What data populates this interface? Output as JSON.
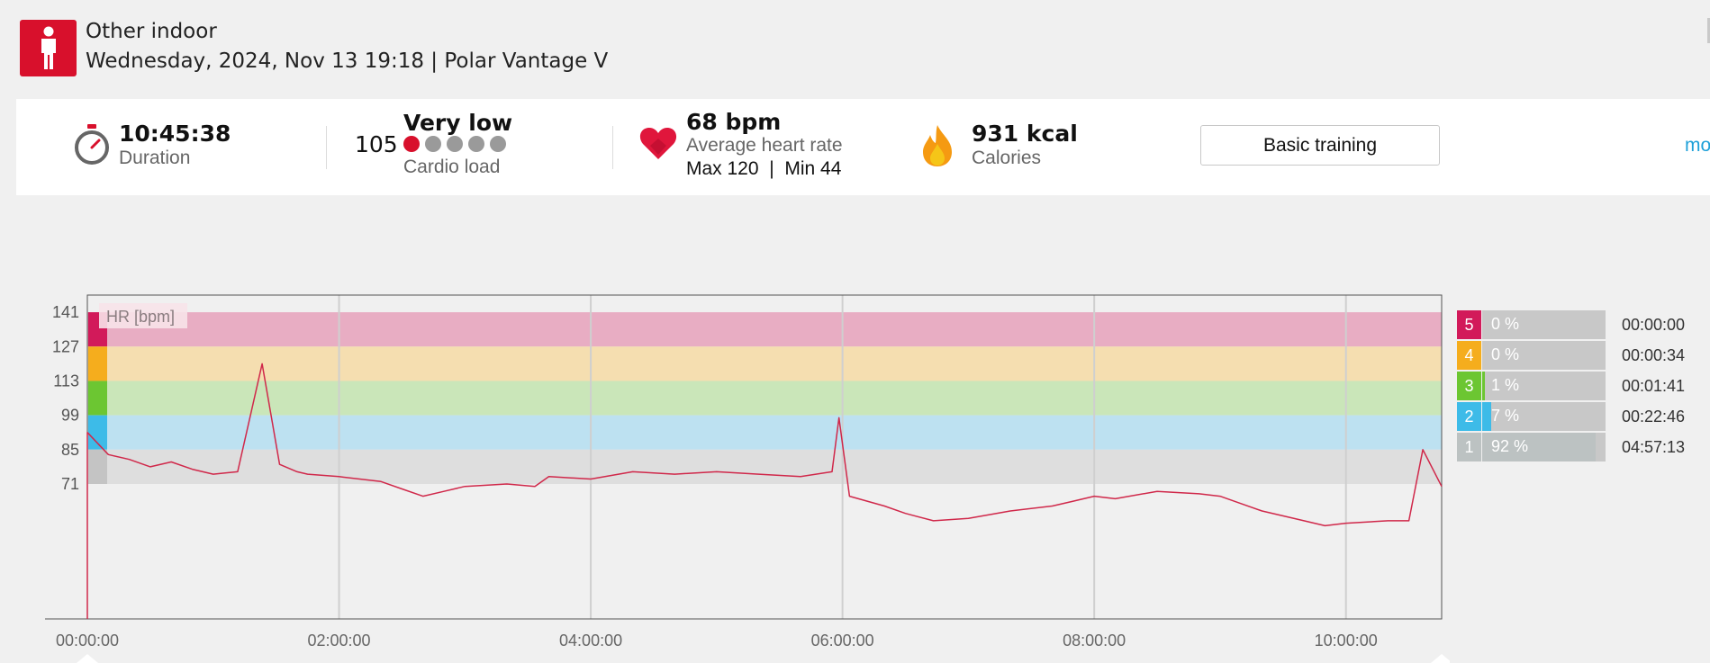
{
  "header": {
    "sport": "Other indoor",
    "subtitle": "Wednesday, 2024, Nov 13 19:18 | Polar Vantage V",
    "sport_icon": "person-icon",
    "accent": "#d8102c"
  },
  "summary": {
    "duration": {
      "value": "10:45:38",
      "label": "Duration",
      "icon": "stopwatch-icon"
    },
    "cardio": {
      "value": "105",
      "level": "Very low",
      "label": "Cardio load",
      "dots_filled": 1,
      "dots_total": 5
    },
    "heart_rate": {
      "value": "68 bpm",
      "label": "Average heart rate",
      "max_min": "Max 120  |  Min 44",
      "icon": "heart-icon"
    },
    "calories": {
      "value": "931 kcal",
      "label": "Calories",
      "icon": "flame-icon"
    },
    "training_button": "Basic training",
    "more_link": "mo"
  },
  "chart_data": {
    "type": "line",
    "title": "",
    "ylabel": "HR [bpm]",
    "xlabel": "",
    "y_ticks": [
      "141",
      "127",
      "113",
      "99",
      "85",
      "71"
    ],
    "x_ticks": [
      "00:00:00",
      "02:00:00",
      "04:00:00",
      "06:00:00",
      "08:00:00",
      "10:00:00"
    ],
    "x_unit": "seconds",
    "x_range": [
      0,
      38738
    ],
    "ylim": [
      16,
      148
    ],
    "zones": [
      {
        "zone": "5",
        "from": 127,
        "to": 141,
        "color": "#e8adc3",
        "marker": "#d21a5a"
      },
      {
        "zone": "4",
        "from": 113,
        "to": 127,
        "color": "#f5deb0",
        "marker": "#f5ad1d"
      },
      {
        "zone": "3",
        "from": 99,
        "to": 113,
        "color": "#cae6b9",
        "marker": "#6cc632"
      },
      {
        "zone": "2",
        "from": 85,
        "to": 99,
        "color": "#bde1f1",
        "marker": "#3dbbe8"
      },
      {
        "zone": "1",
        "from": 71,
        "to": 85,
        "color": "#dedede",
        "marker": "#c4c4c4"
      }
    ],
    "series": [
      {
        "color": "#d0284a",
        "x": [
          0,
          600,
          1200,
          1800,
          2400,
          3000,
          3600,
          4300,
          5000,
          5500,
          6000,
          6300,
          7200,
          8400,
          9000,
          9600,
          10200,
          10800,
          12000,
          12800,
          13200,
          14400,
          15600,
          16800,
          18000,
          19200,
          20400,
          21300,
          21500,
          21800,
          22800,
          23400,
          24200,
          25200,
          26400,
          27600,
          28200,
          28800,
          29400,
          30600,
          31800,
          32400,
          33000,
          33600,
          34800,
          35400,
          36000,
          37200,
          37800,
          38200,
          38738
        ],
        "y": [
          92,
          83,
          81,
          78,
          80,
          77,
          75,
          76,
          120,
          79,
          76,
          75,
          74,
          72,
          69,
          66,
          68,
          70,
          71,
          70,
          74,
          73,
          76,
          75,
          76,
          75,
          74,
          76,
          98,
          66,
          62,
          59,
          56,
          57,
          60,
          62,
          64,
          66,
          65,
          68,
          67,
          66,
          63,
          60,
          56,
          54,
          55,
          56,
          56,
          85,
          70
        ]
      }
    ]
  },
  "zone_stats": [
    {
      "zone": "5",
      "pct": "0 %",
      "fraction": 0.0,
      "time": "00:00:00",
      "color": "#d21a5a"
    },
    {
      "zone": "4",
      "pct": "0 %",
      "fraction": 0.0,
      "time": "00:00:34",
      "color": "#f5ad1d"
    },
    {
      "zone": "3",
      "pct": "1 %",
      "fraction": 0.01,
      "time": "00:01:41",
      "color": "#6cc632"
    },
    {
      "zone": "2",
      "pct": "7 %",
      "fraction": 0.07,
      "time": "00:22:46",
      "color": "#3dbbe8"
    },
    {
      "zone": "1",
      "pct": "92 %",
      "fraction": 0.92,
      "time": "04:57:13",
      "color": "#bcc2c2"
    }
  ]
}
